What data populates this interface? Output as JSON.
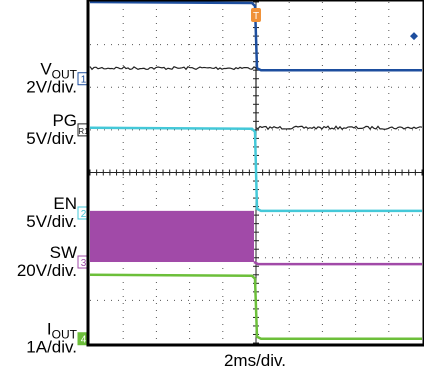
{
  "chart_data": {
    "type": "line",
    "title": "",
    "xlabel": "2ms/div.",
    "ylabel": "",
    "grid": true,
    "divisions": {
      "x": 10,
      "y": 8
    },
    "trigger_time_div": 5.0,
    "trigger_marker": "T",
    "channels": [
      {
        "name_main": "V",
        "name_sub": "OUT",
        "scale": "2V/div.",
        "marker": "1",
        "color": "#1d4e9e",
        "ground_div": 6.2,
        "before_level_div": 8.0,
        "after_level_div": 6.4,
        "noisy": false,
        "label_first": true
      },
      {
        "name_main": "PG",
        "name_sub": "",
        "scale": "5V/div.",
        "marker": "R1",
        "color": "#222222",
        "ground_div": 5.0,
        "before_level_div": 6.45,
        "after_level_div": 5.05,
        "noisy": true,
        "label_first": true
      },
      {
        "name_main": "EN",
        "name_sub": "",
        "scale": "5V/div.",
        "marker": "2",
        "color": "#44c8d8",
        "ground_div": 3.05,
        "before_level_div": 5.05,
        "after_level_div": 3.1,
        "noisy": false,
        "label_first": true
      },
      {
        "name_main": "SW",
        "name_sub": "",
        "scale": "20V/div.",
        "marker": "3",
        "color": "#a14aa8",
        "ground_div": 1.9,
        "before_level_div": 1.9,
        "burst_top_div": 3.1,
        "after_level_div": 1.85,
        "noisy": false,
        "label_first": true
      },
      {
        "name_main": "I",
        "name_sub": "OUT",
        "scale": "1A/div.",
        "marker": "4",
        "color": "#6cbf3a",
        "ground_div": 0.1,
        "before_level_div": 1.6,
        "after_level_div": 0.1,
        "noisy": false,
        "label_first": true
      }
    ]
  }
}
